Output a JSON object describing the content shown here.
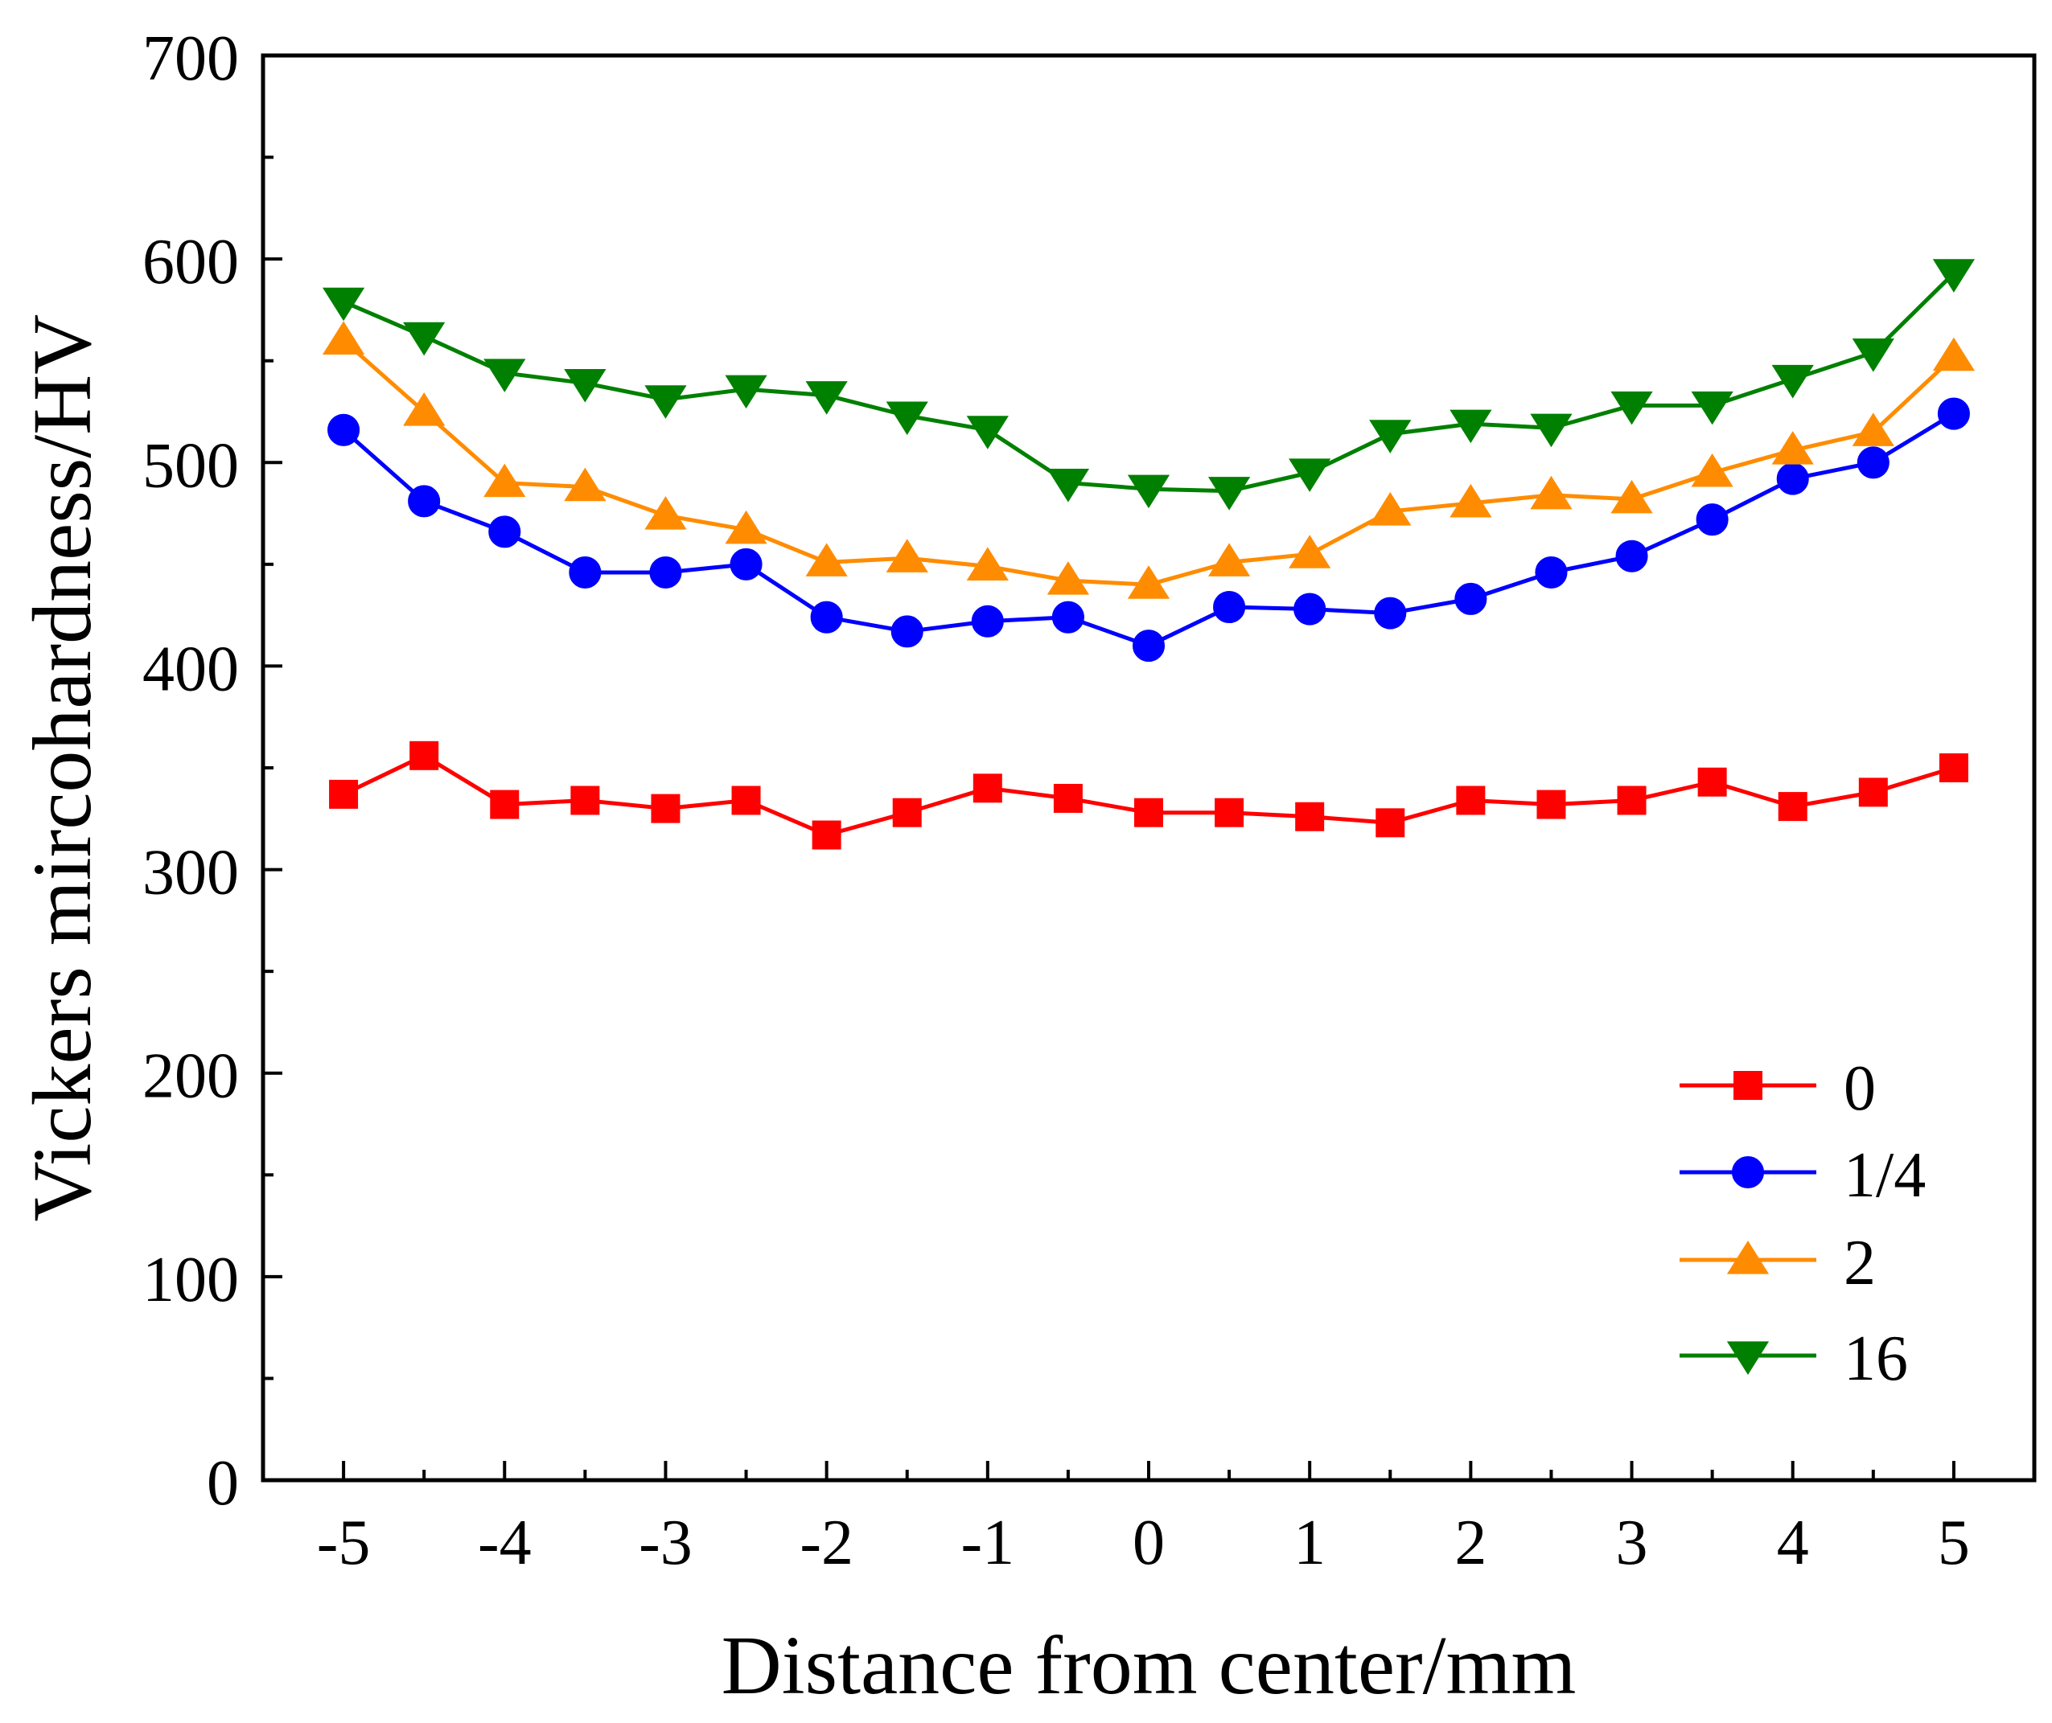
{
  "chart_data": {
    "type": "line",
    "title": "",
    "xlabel": "Distance from center/mm",
    "ylabel": "Vickers mircohardness/HV",
    "xlim": [
      -5.5,
      5.5
    ],
    "ylim": [
      0,
      700
    ],
    "x_ticks": [
      -5,
      -4,
      -3,
      -2,
      -1,
      0,
      1,
      2,
      3,
      4,
      5
    ],
    "x_tick_labels": [
      "-5",
      "-4",
      "-3",
      "-2",
      "-1",
      "0",
      "1",
      "2",
      "3",
      "4",
      "5"
    ],
    "y_ticks": [
      0,
      100,
      200,
      300,
      400,
      500,
      600,
      700
    ],
    "y_tick_labels": [
      "0",
      "100",
      "200",
      "300",
      "400",
      "500",
      "600",
      "700"
    ],
    "grid": false,
    "legend_position": "bottom-right",
    "x": [
      -5,
      -4.5,
      -4,
      -3.5,
      -3,
      -2.5,
      -2,
      -1.5,
      -1,
      -0.5,
      0,
      0.5,
      1,
      1.5,
      2,
      2.5,
      3,
      3.5,
      4,
      4.5,
      5
    ],
    "series": [
      {
        "name": "0",
        "color": "#ff0000",
        "marker": "square",
        "values": [
          337,
          356,
          332,
          334,
          330,
          334,
          317,
          328,
          340,
          335,
          328,
          328,
          326,
          323,
          334,
          332,
          334,
          343,
          331,
          338,
          350
        ]
      },
      {
        "name": "1/4",
        "color": "#0000ff",
        "marker": "circle",
        "values": [
          516,
          481,
          466,
          446,
          446,
          450,
          424,
          417,
          422,
          424,
          410,
          429,
          428,
          426,
          433,
          446,
          454,
          472,
          492,
          500,
          524
        ]
      },
      {
        "name": "2",
        "color": "#ff8c00",
        "marker": "triangle-up",
        "values": [
          560,
          525,
          490,
          488,
          474,
          467,
          451,
          453,
          449,
          442,
          440,
          451,
          455,
          476,
          480,
          484,
          482,
          495,
          506,
          515,
          552
        ]
      },
      {
        "name": "16",
        "color": "#008000",
        "marker": "triangle-down",
        "values": [
          579,
          562,
          544,
          539,
          531,
          536,
          533,
          523,
          516,
          490,
          487,
          486,
          495,
          514,
          519,
          517,
          528,
          528,
          541,
          554,
          593
        ]
      }
    ]
  }
}
